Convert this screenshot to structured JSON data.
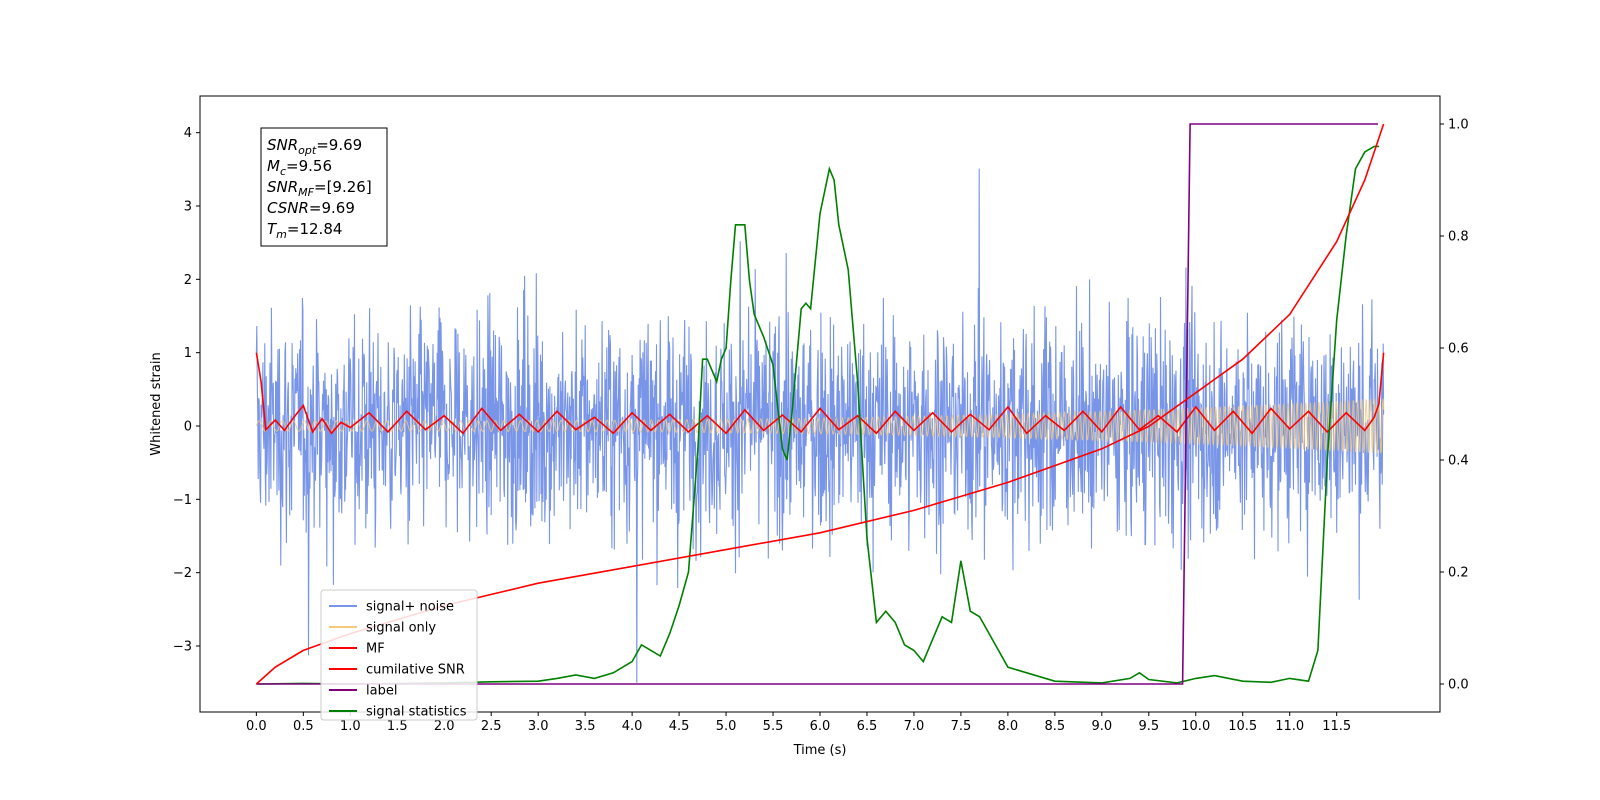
{
  "chart_data": {
    "type": "line",
    "xlabel": "Time (s)",
    "ylabel": "Whitened strain",
    "xlim": [
      -0.6,
      12.6
    ],
    "ylim_left": [
      -3.9,
      4.5
    ],
    "ylim_right": [
      -0.05,
      1.05
    ],
    "x_ticks": [
      "0.0",
      "0.5",
      "1.0",
      "1.5",
      "2.0",
      "2.5",
      "3.0",
      "3.5",
      "4.0",
      "4.5",
      "5.0",
      "5.5",
      "6.0",
      "6.5",
      "7.0",
      "7.5",
      "8.0",
      "8.5",
      "9.0",
      "9.5",
      "10.0",
      "10.5",
      "11.0",
      "11.5"
    ],
    "y_ticks_left": [
      "4",
      "3",
      "2",
      "1",
      "0",
      "−1",
      "−2",
      "−3"
    ],
    "y_ticks_right": [
      "1.0",
      "0.8",
      "0.6",
      "0.4",
      "0.2",
      "0.0"
    ],
    "grid": false,
    "legend_position": "lower-left",
    "annotation": {
      "lines": [
        {
          "base": "SNR",
          "sub": "opt",
          "value": "=9.69"
        },
        {
          "base": "M",
          "sub": "c",
          "value": "=9.56"
        },
        {
          "base": "SNR",
          "sub": "MF",
          "value": "=[9.26]"
        },
        {
          "base": "CSNR",
          "sub": "",
          "value": "=9.69"
        },
        {
          "base": "T",
          "sub": "m",
          "value": "=12.84"
        }
      ]
    },
    "series": [
      {
        "name": "signal+ noise",
        "axis": "left",
        "color": "#7895e8",
        "description": "noisy whitened strain, roughly ±2 with spikes to ±3.5"
      },
      {
        "name": "signal only",
        "axis": "left",
        "color": "#f5c97a",
        "description": "chirp growing to amplitude ~0.38 at the end"
      },
      {
        "name": "MF",
        "axis": "left",
        "color": "#ff0000",
        "x": [
          0.0,
          0.05,
          0.1,
          0.2,
          0.3,
          0.4,
          0.5,
          0.6,
          0.7,
          0.8,
          0.9,
          1.0,
          1.2,
          1.4,
          1.6,
          1.8,
          2.0,
          2.2,
          2.4,
          2.6,
          2.8,
          3.0,
          3.2,
          3.4,
          3.6,
          3.8,
          4.0,
          4.2,
          4.4,
          4.6,
          4.8,
          5.0,
          5.2,
          5.4,
          5.6,
          5.8,
          6.0,
          6.2,
          6.4,
          6.6,
          6.8,
          7.0,
          7.2,
          7.4,
          7.6,
          7.8,
          8.0,
          8.2,
          8.4,
          8.6,
          8.8,
          9.0,
          9.2,
          9.4,
          9.6,
          9.8,
          10.0,
          10.2,
          10.4,
          10.6,
          10.8,
          11.0,
          11.2,
          11.4,
          11.6,
          11.8,
          11.9,
          11.95,
          12.0
        ],
        "y": [
          1.0,
          0.6,
          -0.05,
          0.08,
          -0.06,
          0.12,
          0.28,
          -0.08,
          0.1,
          -0.1,
          0.05,
          -0.02,
          0.18,
          -0.08,
          0.2,
          -0.05,
          0.14,
          -0.1,
          0.24,
          -0.06,
          0.16,
          -0.08,
          0.2,
          -0.05,
          0.12,
          -0.1,
          0.18,
          -0.06,
          0.16,
          -0.08,
          0.14,
          -0.1,
          0.22,
          -0.06,
          0.15,
          -0.08,
          0.24,
          -0.05,
          0.14,
          -0.1,
          0.2,
          -0.06,
          0.18,
          -0.08,
          0.16,
          -0.05,
          0.26,
          -0.1,
          0.14,
          -0.06,
          0.2,
          -0.08,
          0.26,
          -0.05,
          0.14,
          -0.08,
          0.26,
          -0.06,
          0.2,
          -0.1,
          0.24,
          -0.04,
          0.2,
          -0.08,
          0.18,
          -0.06,
          0.12,
          0.3,
          1.0
        ]
      },
      {
        "name": "cumilative SNR",
        "axis": "right",
        "color": "#ff0000",
        "x": [
          0.0,
          0.2,
          0.5,
          1.0,
          2.0,
          3.0,
          4.0,
          5.0,
          6.0,
          7.0,
          8.0,
          8.5,
          9.0,
          9.5,
          10.0,
          10.5,
          11.0,
          11.5,
          11.8,
          12.0
        ],
        "y": [
          0.0,
          0.03,
          0.06,
          0.09,
          0.14,
          0.18,
          0.21,
          0.24,
          0.27,
          0.31,
          0.36,
          0.39,
          0.42,
          0.46,
          0.52,
          0.58,
          0.66,
          0.79,
          0.9,
          1.0
        ]
      },
      {
        "name": "label",
        "axis": "right",
        "color": "#800080",
        "x": [
          0.0,
          9.86,
          9.94,
          11.94
        ],
        "y": [
          0.0,
          0.0,
          1.0,
          1.0
        ]
      },
      {
        "name": "signal statistics",
        "axis": "right",
        "color": "#008000",
        "x": [
          0.0,
          0.5,
          1.0,
          2.0,
          2.5,
          3.0,
          3.2,
          3.4,
          3.6,
          3.8,
          4.0,
          4.1,
          4.2,
          4.3,
          4.4,
          4.5,
          4.6,
          4.7,
          4.75,
          4.8,
          4.9,
          4.95,
          5.0,
          5.05,
          5.1,
          5.2,
          5.25,
          5.3,
          5.4,
          5.5,
          5.6,
          5.65,
          5.7,
          5.8,
          5.85,
          5.9,
          6.0,
          6.1,
          6.15,
          6.2,
          6.3,
          6.4,
          6.5,
          6.6,
          6.7,
          6.8,
          6.9,
          7.0,
          7.1,
          7.2,
          7.3,
          7.4,
          7.5,
          7.6,
          7.7,
          7.8,
          7.9,
          8.0,
          8.5,
          9.0,
          9.3,
          9.4,
          9.5,
          9.8,
          10.0,
          10.2,
          10.5,
          10.8,
          11.0,
          11.2,
          11.3,
          11.4,
          11.5,
          11.6,
          11.7,
          11.8,
          11.9,
          11.95
        ],
        "y": [
          0.0,
          0.001,
          0.0,
          0.002,
          0.004,
          0.005,
          0.01,
          0.016,
          0.01,
          0.02,
          0.04,
          0.07,
          0.06,
          0.05,
          0.09,
          0.14,
          0.2,
          0.42,
          0.58,
          0.58,
          0.54,
          0.58,
          0.6,
          0.72,
          0.82,
          0.82,
          0.72,
          0.66,
          0.62,
          0.57,
          0.42,
          0.4,
          0.48,
          0.67,
          0.68,
          0.67,
          0.84,
          0.92,
          0.9,
          0.82,
          0.74,
          0.54,
          0.26,
          0.11,
          0.13,
          0.11,
          0.07,
          0.06,
          0.04,
          0.08,
          0.12,
          0.11,
          0.22,
          0.13,
          0.12,
          0.09,
          0.06,
          0.03,
          0.005,
          0.002,
          0.01,
          0.02,
          0.008,
          0.002,
          0.01,
          0.015,
          0.005,
          0.003,
          0.01,
          0.005,
          0.06,
          0.4,
          0.65,
          0.8,
          0.92,
          0.95,
          0.96,
          0.96
        ]
      }
    ]
  }
}
